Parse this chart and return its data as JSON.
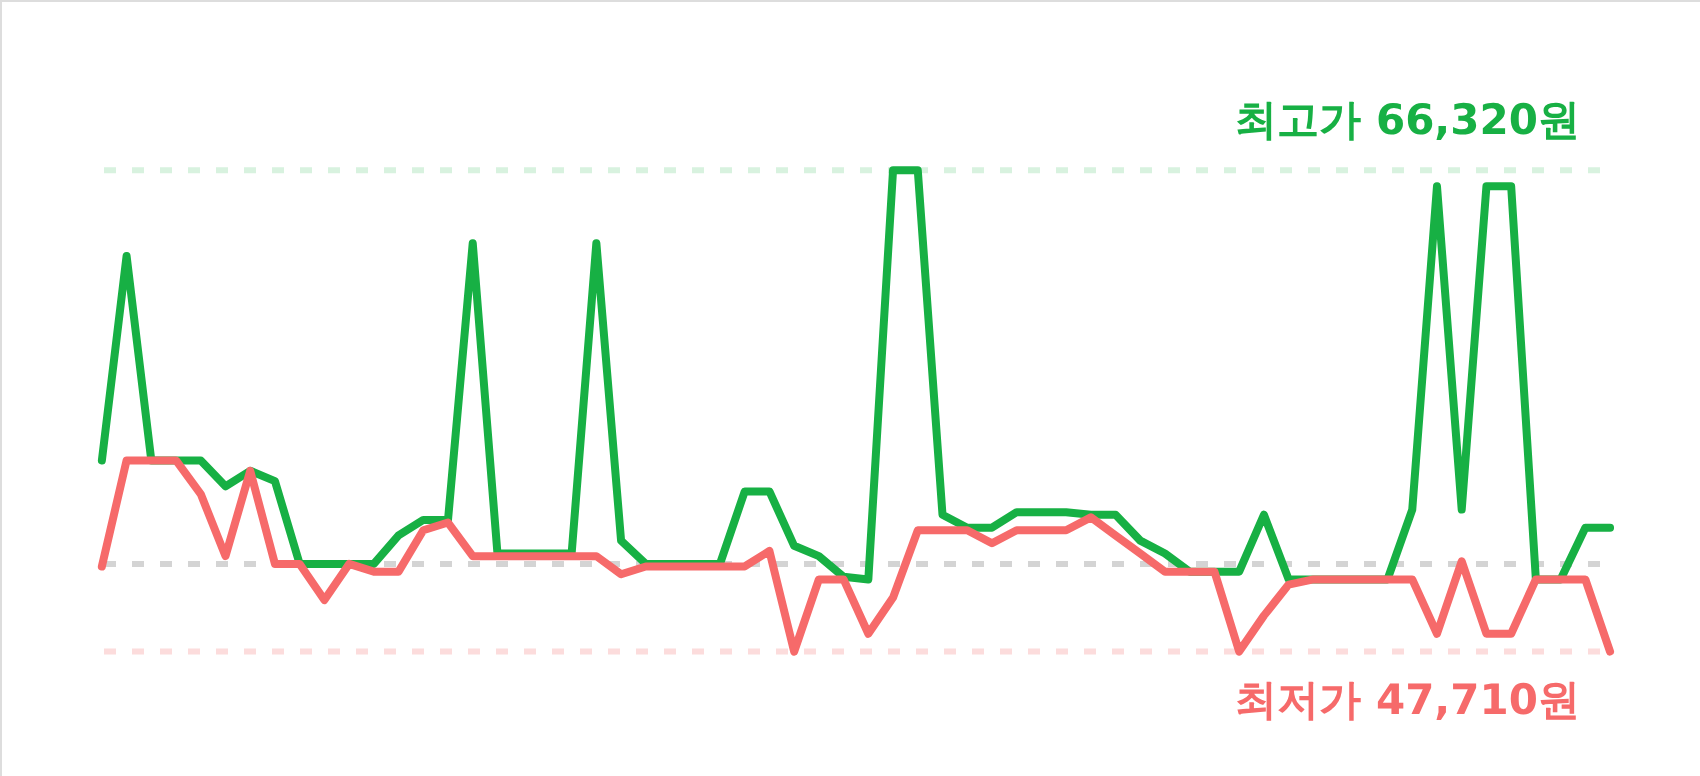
{
  "chart_data": {
    "type": "line",
    "categories": [
      null,
      null,
      null,
      null,
      null,
      null,
      null,
      null,
      null,
      null,
      null,
      null,
      null,
      null,
      null,
      null,
      null,
      null,
      null,
      null,
      null,
      null,
      null,
      null,
      null,
      null,
      null,
      null,
      null,
      null,
      null,
      null,
      null,
      null,
      null,
      null,
      null,
      null,
      null,
      null,
      null,
      null,
      null,
      null,
      null,
      null,
      null,
      null,
      null,
      null,
      null,
      null,
      null,
      null,
      null,
      null,
      null,
      null,
      null,
      null,
      null,
      null
    ],
    "series": [
      {
        "color": "#17b044",
        "values": [
          55100,
          63000,
          55100,
          55100,
          55100,
          54100,
          54700,
          54300,
          51100,
          51100,
          51100,
          51100,
          52200,
          52800,
          52800,
          63500,
          51500,
          51500,
          51500,
          51500,
          63500,
          52000,
          51100,
          51100,
          51100,
          51100,
          53900,
          53900,
          51800,
          51400,
          50600,
          50500,
          66320,
          66320,
          53000,
          52500,
          52500,
          53100,
          53100,
          53100,
          53000,
          53000,
          52000,
          51500,
          50800,
          50800,
          50800,
          53000,
          50500,
          50500,
          50500,
          50500,
          50500,
          53200,
          65700,
          53200,
          65700,
          65700,
          50500,
          50500,
          52500,
          52500
        ]
      },
      {
        "color": "#f66a6a",
        "values": [
          51000,
          55100,
          55100,
          55100,
          53800,
          51400,
          54700,
          51100,
          51100,
          49700,
          51100,
          50800,
          50800,
          52400,
          52700,
          51400,
          51400,
          51400,
          51400,
          51400,
          51400,
          50700,
          51000,
          51000,
          51000,
          51000,
          51000,
          51600,
          47710,
          50500,
          50500,
          48400,
          49800,
          52400,
          52400,
          52400,
          51900,
          52400,
          52400,
          52400,
          52900,
          52200,
          51500,
          50800,
          50800,
          50800,
          47710,
          49100,
          50300,
          50500,
          50500,
          50500,
          50500,
          50500,
          48400,
          51200,
          48400,
          48400,
          50500,
          50500,
          50500,
          47710
        ]
      }
    ],
    "ylim": [
      42900,
      72900
    ],
    "grid": false,
    "marker": "none",
    "line_style": "solid",
    "ref_lines": [
      {
        "axis": "y",
        "value": 66320,
        "label": "최고가 66,320원",
        "color": "#d8f2df",
        "line_style": "dotted"
      },
      {
        "axis": "y",
        "value": 51100,
        "label": null,
        "color": "#d4d4d4",
        "line_style": "dotted"
      },
      {
        "axis": "y",
        "value": 47710,
        "label": "최저가 47,710원",
        "color": "#fcdcdc",
        "line_style": "dotted"
      }
    ]
  }
}
